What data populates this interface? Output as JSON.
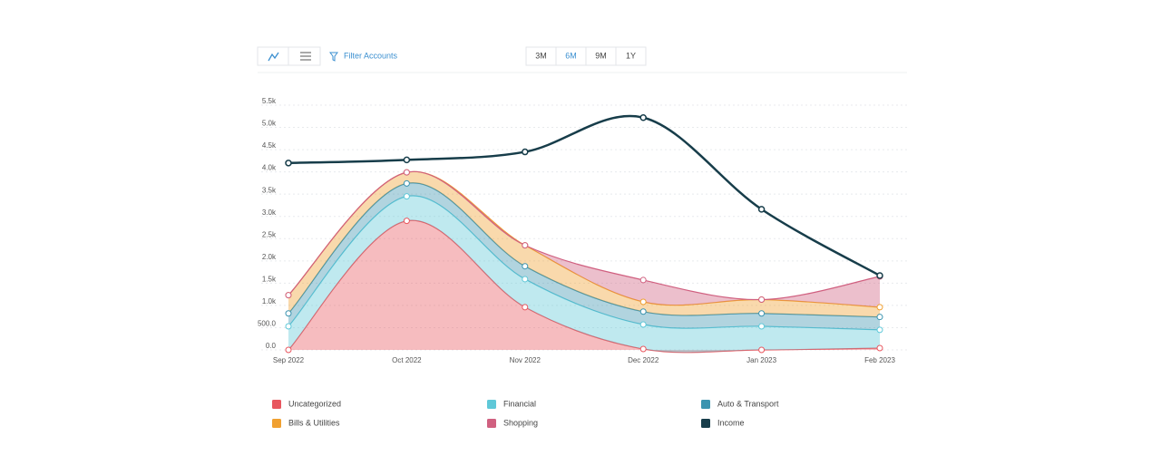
{
  "toolbar": {
    "filter": "Filter Accounts",
    "ranges": [
      "3M",
      "6M",
      "9M",
      "1Y"
    ],
    "selected_range": 1
  },
  "chart_data": {
    "type": "area",
    "categories": [
      "Sep 2022",
      "Oct 2022",
      "Nov 2022",
      "Dec 2022",
      "Jan 2023",
      "Feb 2023"
    ],
    "ylim": [
      0,
      5500
    ],
    "yticks": [
      {
        "value": 0,
        "label": "0.0"
      },
      {
        "value": 500,
        "label": "500.0"
      },
      {
        "value": 1000,
        "label": "1.0k"
      },
      {
        "value": 1500,
        "label": "1.5k"
      },
      {
        "value": 2000,
        "label": "2.0k"
      },
      {
        "value": 2500,
        "label": "2.5k"
      },
      {
        "value": 3000,
        "label": "3.0k"
      },
      {
        "value": 3500,
        "label": "3.5k"
      },
      {
        "value": 4000,
        "label": "4.0k"
      },
      {
        "value": 4500,
        "label": "4.5k"
      },
      {
        "value": 5000,
        "label": "5.0k"
      },
      {
        "value": 5500,
        "label": "5.5k"
      }
    ],
    "grid": true,
    "series": [
      {
        "name": "Uncategorized",
        "color": "#e8575f",
        "stacked": true,
        "values": [
          0,
          2900,
          960,
          20,
          0,
          40
        ]
      },
      {
        "name": "Financial",
        "color": "#5fc8d8",
        "stacked": true,
        "values": [
          530,
          550,
          630,
          550,
          530,
          410
        ]
      },
      {
        "name": "Auto & Transport",
        "color": "#3b94b0",
        "stacked": true,
        "values": [
          290,
          290,
          290,
          290,
          290,
          290
        ]
      },
      {
        "name": "Bills & Utilities",
        "color": "#f0a030",
        "stacked": true,
        "values": [
          410,
          250,
          470,
          220,
          310,
          220
        ]
      },
      {
        "name": "Shopping",
        "color": "#d06080",
        "stacked": true,
        "values": [
          0,
          0,
          0,
          490,
          0,
          690
        ]
      },
      {
        "name": "Income",
        "color": "#173d4a",
        "stacked": false,
        "values": [
          4200,
          4270,
          4450,
          5220,
          3160,
          1670
        ]
      }
    ]
  }
}
